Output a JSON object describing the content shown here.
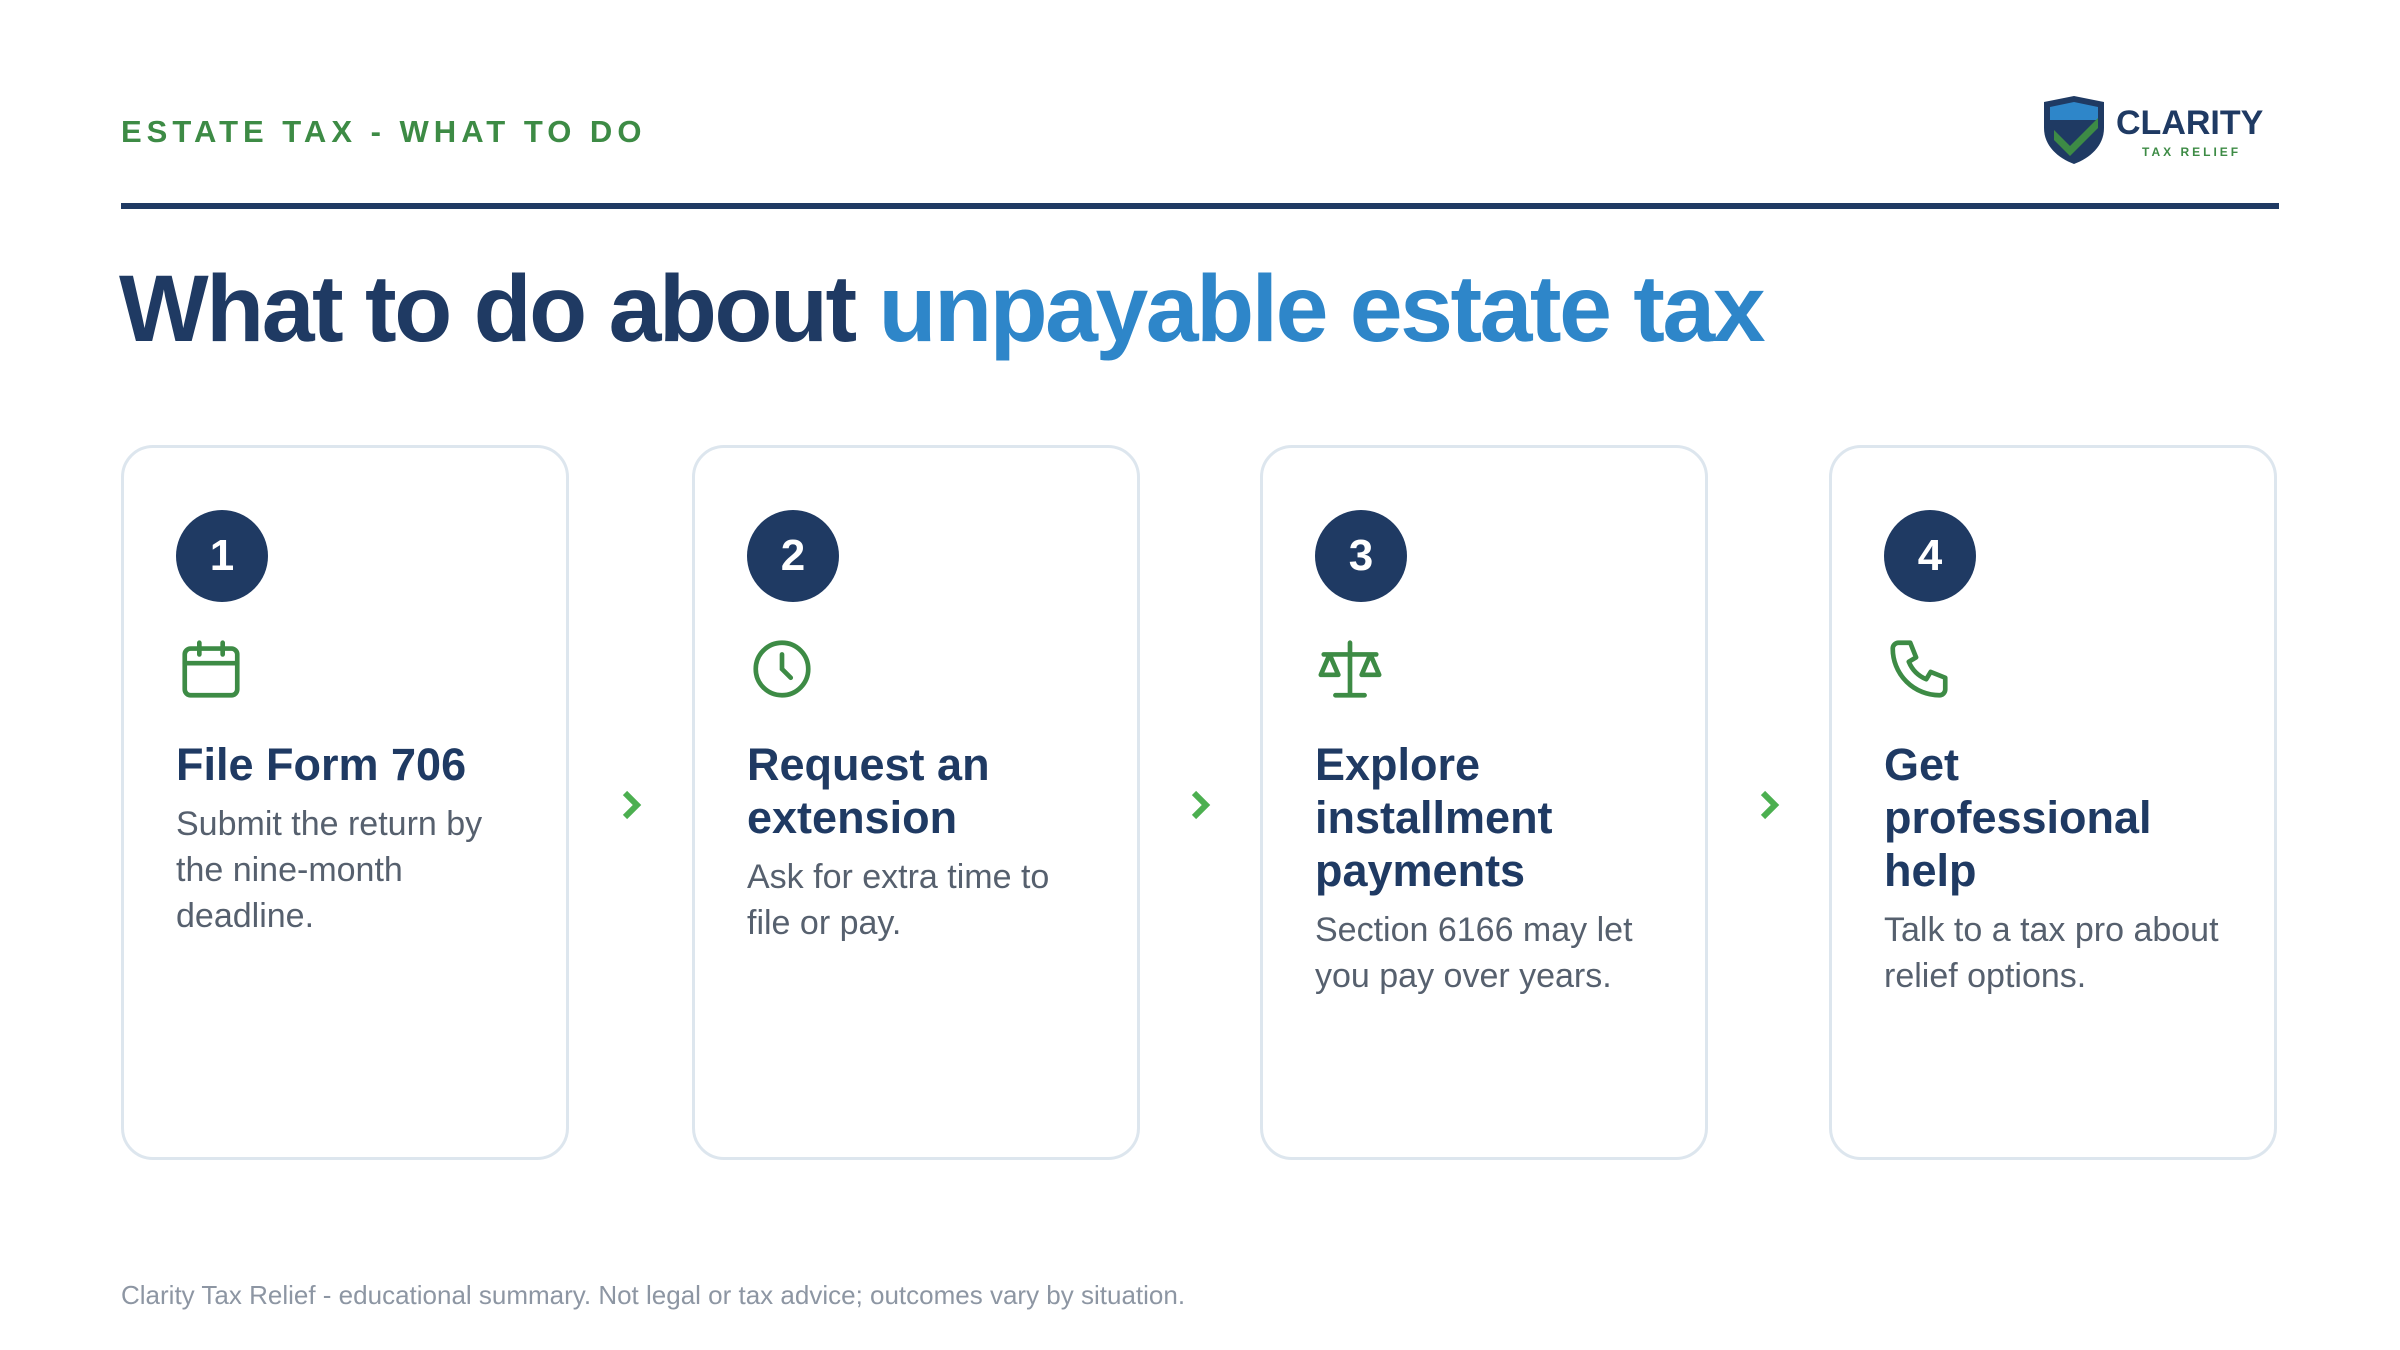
{
  "header": {
    "eyebrow": "ESTATE TAX - WHAT TO DO",
    "logo_name": "CLARITY",
    "logo_tagline": "TAX RELIEF"
  },
  "title": {
    "lead": "What to do about",
    "highlight": "unpayable estate tax"
  },
  "steps": [
    {
      "number": "1",
      "title": "File Form 706",
      "text": "Submit the return by the nine-month deadline."
    },
    {
      "number": "2",
      "title": "Request an extension",
      "text": "Ask for extra time to file or pay."
    },
    {
      "number": "3",
      "title": "Explore installment payments",
      "text": "Section 6166 may let you pay over years."
    },
    {
      "number": "4",
      "title": "Get professional help",
      "text": "Talk to a tax pro about relief options."
    }
  ],
  "footer": "Clarity Tax Relief - educational summary. Not legal or tax advice; outcomes vary by situation."
}
